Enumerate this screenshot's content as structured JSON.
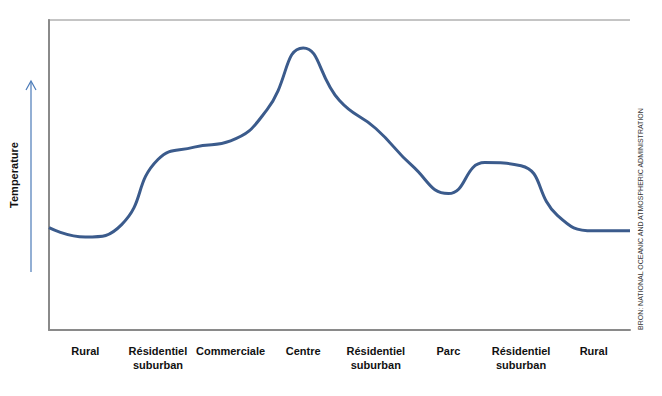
{
  "chart_data": {
    "type": "line",
    "y_label": "Temperature",
    "source": "BRON: NATIONAL OCEANIC AND ATMOSPHERIC ADMINISTRATION",
    "categories": [
      null,
      "Rural",
      null,
      "Résidentiel suburban",
      null,
      "Commerciale",
      null,
      "Centre",
      null,
      "Résidentiel suburban",
      null,
      "Parc",
      null,
      "Résidentiel suburban",
      null,
      "Rural",
      null
    ],
    "values": [
      33,
      30,
      34,
      55,
      59,
      61,
      71,
      91,
      74,
      65,
      53,
      44,
      54,
      53,
      37,
      32,
      32
    ],
    "color": "#3b5b8c",
    "ylim": [
      0,
      100
    ],
    "tick_labels": "x",
    "grid": false
  }
}
